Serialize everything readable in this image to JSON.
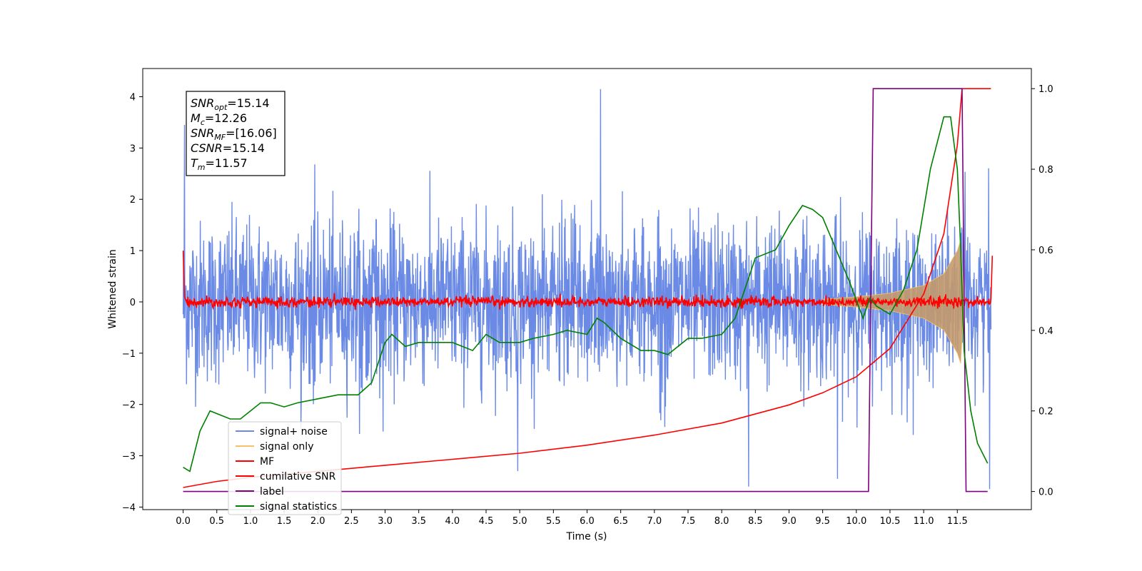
{
  "chart_data": {
    "type": "line",
    "xlabel": "Time (s)",
    "ylabel": "Whitened strain",
    "xlim": [
      -0.6,
      12.6
    ],
    "ylim": [
      -4.05,
      4.55
    ],
    "ylim_right": [
      -0.045,
      1.05
    ],
    "x_ticks": [
      0.0,
      0.5,
      1.0,
      1.5,
      2.0,
      2.5,
      3.0,
      3.5,
      4.0,
      4.5,
      5.0,
      5.5,
      6.0,
      6.5,
      7.0,
      7.5,
      8.0,
      8.5,
      9.0,
      9.5,
      10.0,
      10.5,
      11.0,
      11.5
    ],
    "x_tick_labels": [
      "0.0",
      "0.5",
      "1.0",
      "1.5",
      "2.0",
      "2.5",
      "3.0",
      "3.5",
      "4.0",
      "4.5",
      "5.0",
      "5.5",
      "6.0",
      "6.5",
      "7.0",
      "7.5",
      "8.0",
      "8.5",
      "9.0",
      "9.5",
      "10.0",
      "10.5",
      "11.0",
      "11.5"
    ],
    "y_ticks": [
      -4,
      -3,
      -2,
      -1,
      0,
      1,
      2,
      3,
      4
    ],
    "y_tick_labels": [
      "−4",
      "−3",
      "−2",
      "−1",
      "0",
      "1",
      "2",
      "3",
      "4"
    ],
    "y2_ticks": [
      0.0,
      0.2,
      0.4,
      0.6,
      0.8,
      1.0
    ],
    "y2_tick_labels": [
      "0.0",
      "0.2",
      "0.4",
      "0.6",
      "0.8",
      "1.0"
    ],
    "grid": false,
    "legend_position": "lower-left",
    "legend": [
      {
        "label": "signal+ noise",
        "color": "#6a8ae6"
      },
      {
        "label": "signal only",
        "color": "#f5c26b"
      },
      {
        "label": "MF",
        "color": "#ff0000"
      },
      {
        "label": "cumilative SNR",
        "color": "#ff0000"
      },
      {
        "label": "label",
        "color": "#800080"
      },
      {
        "label": "signal statistics",
        "color": "#008000"
      }
    ],
    "annotations": [
      {
        "name": "SNR",
        "sub": "opt",
        "value": "=15.14"
      },
      {
        "name": "M",
        "sub": "c",
        "value": "=12.26"
      },
      {
        "name": "SNR",
        "sub": "MF",
        "value": "=[16.06]"
      },
      {
        "name": "CSNR",
        "sub": "",
        "value": "=15.14"
      },
      {
        "name": "T",
        "sub": "m",
        "value": "=11.57"
      }
    ],
    "series": [
      {
        "name": "signal+ noise",
        "axis": "left",
        "color": "#6a8ae6",
        "description_values": "noise band roughly -2.5 to 2.7 across 0-12 s with spikes to 4.15 near 6.2 s and -3.6 near 8.4 s"
      },
      {
        "name": "signal only",
        "axis": "left",
        "color": "#f5c26b",
        "envelope": {
          "x": [
            9.5,
            10.0,
            10.5,
            11.0,
            11.3,
            11.5,
            11.55,
            11.6
          ],
          "amp": [
            0.05,
            0.1,
            0.17,
            0.32,
            0.55,
            1.0,
            1.2,
            0.0
          ]
        }
      },
      {
        "name": "MF",
        "axis": "left",
        "color": "#ff0000",
        "x": [
          0.0,
          0.02,
          0.05,
          12.0,
          12.02
        ],
        "y": [
          1.0,
          0.1,
          0.0,
          0.0,
          0.9
        ]
      },
      {
        "name": "cumilative SNR",
        "axis": "right",
        "color": "#ff0000",
        "x": [
          0.0,
          0.5,
          1.0,
          2.0,
          3.0,
          4.0,
          5.0,
          6.0,
          7.0,
          8.0,
          9.0,
          9.5,
          10.0,
          10.5,
          11.0,
          11.3,
          11.5,
          11.57,
          12.0
        ],
        "y": [
          0.01,
          0.025,
          0.035,
          0.05,
          0.065,
          0.08,
          0.095,
          0.115,
          0.14,
          0.17,
          0.215,
          0.245,
          0.285,
          0.355,
          0.49,
          0.64,
          0.86,
          1.0,
          1.0
        ]
      },
      {
        "name": "label",
        "axis": "right",
        "color": "#800080",
        "x": [
          0.0,
          10.18,
          10.25,
          11.57,
          11.63,
          11.95
        ],
        "y": [
          0.0,
          0.0,
          1.0,
          1.0,
          0.0,
          0.0
        ]
      },
      {
        "name": "signal statistics",
        "axis": "right",
        "color": "#008000",
        "x": [
          0.0,
          0.1,
          0.25,
          0.4,
          0.55,
          0.7,
          0.85,
          1.0,
          1.15,
          1.3,
          1.5,
          1.7,
          2.0,
          2.3,
          2.6,
          2.8,
          3.0,
          3.1,
          3.3,
          3.5,
          3.8,
          4.0,
          4.3,
          4.5,
          4.7,
          5.0,
          5.2,
          5.5,
          5.7,
          6.0,
          6.15,
          6.25,
          6.5,
          6.8,
          7.0,
          7.2,
          7.5,
          7.7,
          8.0,
          8.2,
          8.5,
          8.8,
          9.0,
          9.2,
          9.35,
          9.5,
          9.7,
          9.9,
          10.1,
          10.2,
          10.3,
          10.5,
          10.7,
          10.9,
          11.1,
          11.3,
          11.4,
          11.5,
          11.55,
          11.6,
          11.7,
          11.8,
          11.95
        ],
        "y": [
          0.06,
          0.05,
          0.15,
          0.2,
          0.19,
          0.18,
          0.18,
          0.2,
          0.22,
          0.22,
          0.21,
          0.22,
          0.23,
          0.24,
          0.24,
          0.27,
          0.37,
          0.39,
          0.36,
          0.37,
          0.37,
          0.37,
          0.35,
          0.39,
          0.37,
          0.37,
          0.38,
          0.39,
          0.4,
          0.39,
          0.43,
          0.42,
          0.38,
          0.35,
          0.35,
          0.34,
          0.38,
          0.38,
          0.39,
          0.43,
          0.58,
          0.6,
          0.66,
          0.71,
          0.7,
          0.68,
          0.6,
          0.52,
          0.43,
          0.48,
          0.46,
          0.44,
          0.5,
          0.6,
          0.8,
          0.93,
          0.93,
          0.8,
          0.6,
          0.35,
          0.2,
          0.12,
          0.07
        ]
      }
    ]
  }
}
